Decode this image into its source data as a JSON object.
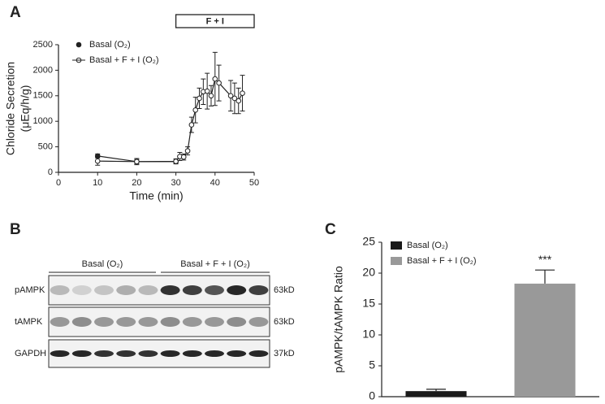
{
  "chart_data": [
    {
      "type": "line",
      "panel": "A",
      "ylabel": [
        "Chloride Secretion",
        "(μEq/h/g)"
      ],
      "xlabel": "Time (min)",
      "xlim": [
        0,
        50
      ],
      "xticks": [
        0,
        10,
        20,
        30,
        40,
        50
      ],
      "ylim": [
        0,
        2500
      ],
      "yticks": [
        0,
        500,
        1000,
        1500,
        2000,
        2500
      ],
      "annotation": {
        "text": "F + I",
        "x": [
          30,
          50
        ]
      },
      "series": [
        {
          "name": "Basal (O₂)",
          "marker": "filled",
          "color": "#222",
          "x": [
            10,
            20,
            30
          ],
          "values": [
            320,
            210,
            210
          ],
          "errors": [
            40,
            40,
            30
          ]
        },
        {
          "name": "Basal + F + I (O₂)",
          "marker": "open",
          "color": "#222",
          "x": [
            10,
            20,
            30,
            31,
            32,
            33,
            34,
            35,
            36,
            37,
            38,
            39,
            40,
            41,
            44,
            45,
            46,
            47
          ],
          "values": [
            220,
            210,
            215,
            310,
            300,
            420,
            930,
            1220,
            1450,
            1580,
            1590,
            1500,
            1830,
            1750,
            1500,
            1450,
            1400,
            1550
          ],
          "errors": [
            80,
            60,
            50,
            80,
            60,
            80,
            150,
            250,
            200,
            250,
            350,
            200,
            520,
            350,
            300,
            300,
            250,
            350
          ]
        }
      ]
    },
    {
      "type": "bar",
      "panel": "C",
      "ylabel": "pAMPK/tAMPK Ratio",
      "ylim": [
        0,
        25
      ],
      "yticks": [
        0,
        5,
        10,
        15,
        20,
        25
      ],
      "annotation": "***",
      "series": [
        {
          "name": "Basal (O₂)",
          "color": "#1a1a1a",
          "values": [
            0.9
          ],
          "errors": [
            0.3
          ]
        },
        {
          "name": "Basal + F + I (O₂)",
          "color": "#999999",
          "values": [
            18.3
          ],
          "errors": [
            2.2
          ]
        }
      ]
    }
  ],
  "blot": {
    "panel": "B",
    "groups": [
      "Basal (O₂)",
      "Basal + F + I (O₂)"
    ],
    "rows": [
      {
        "name": "pAMPK",
        "size": "63kD"
      },
      {
        "name": "tAMPK",
        "size": "63kD"
      },
      {
        "name": "GAPDH",
        "size": "37kD"
      }
    ]
  }
}
